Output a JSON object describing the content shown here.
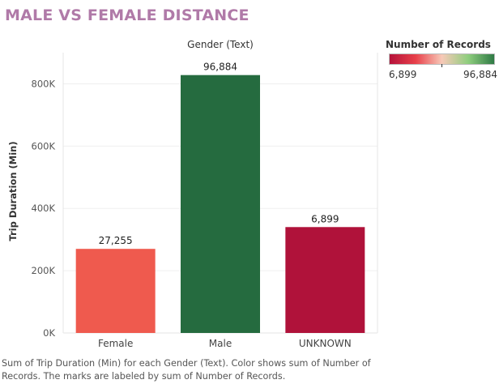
{
  "page": {
    "title": "MALE VS FEMALE DISTANCE",
    "caption": "Sum of Trip Duration (Min) for each Gender (Text).  Color shows sum of Number of Records.  The marks are labeled by sum of Number of Records."
  },
  "legend": {
    "title": "Number of Records",
    "min_label": "6,899",
    "max_label": "96,884",
    "min_value": 6899,
    "max_value": 96884,
    "colors": [
      "#b5123a",
      "#e8404a",
      "#f7c9b8",
      "#8fce7e",
      "#2f7a45"
    ]
  },
  "chart_data": {
    "type": "bar",
    "title": "",
    "xlabel": "Gender (Text)",
    "ylabel": "Trip Duration (Min)",
    "ylim": [
      0,
      900000
    ],
    "yticks": [
      0,
      200000,
      400000,
      600000,
      800000
    ],
    "ytick_labels": [
      "0K",
      "200K",
      "400K",
      "600K",
      "800K"
    ],
    "grid": true,
    "categories": [
      "Female",
      "Male",
      "UNKNOWN"
    ],
    "values": [
      270000,
      828000,
      340000
    ],
    "data_labels": [
      "27,255",
      "96,884",
      "6,899"
    ],
    "record_counts": [
      27255,
      96884,
      6899
    ],
    "colors": [
      "#ef5a4e",
      "#256b3f",
      "#b0123a"
    ]
  }
}
